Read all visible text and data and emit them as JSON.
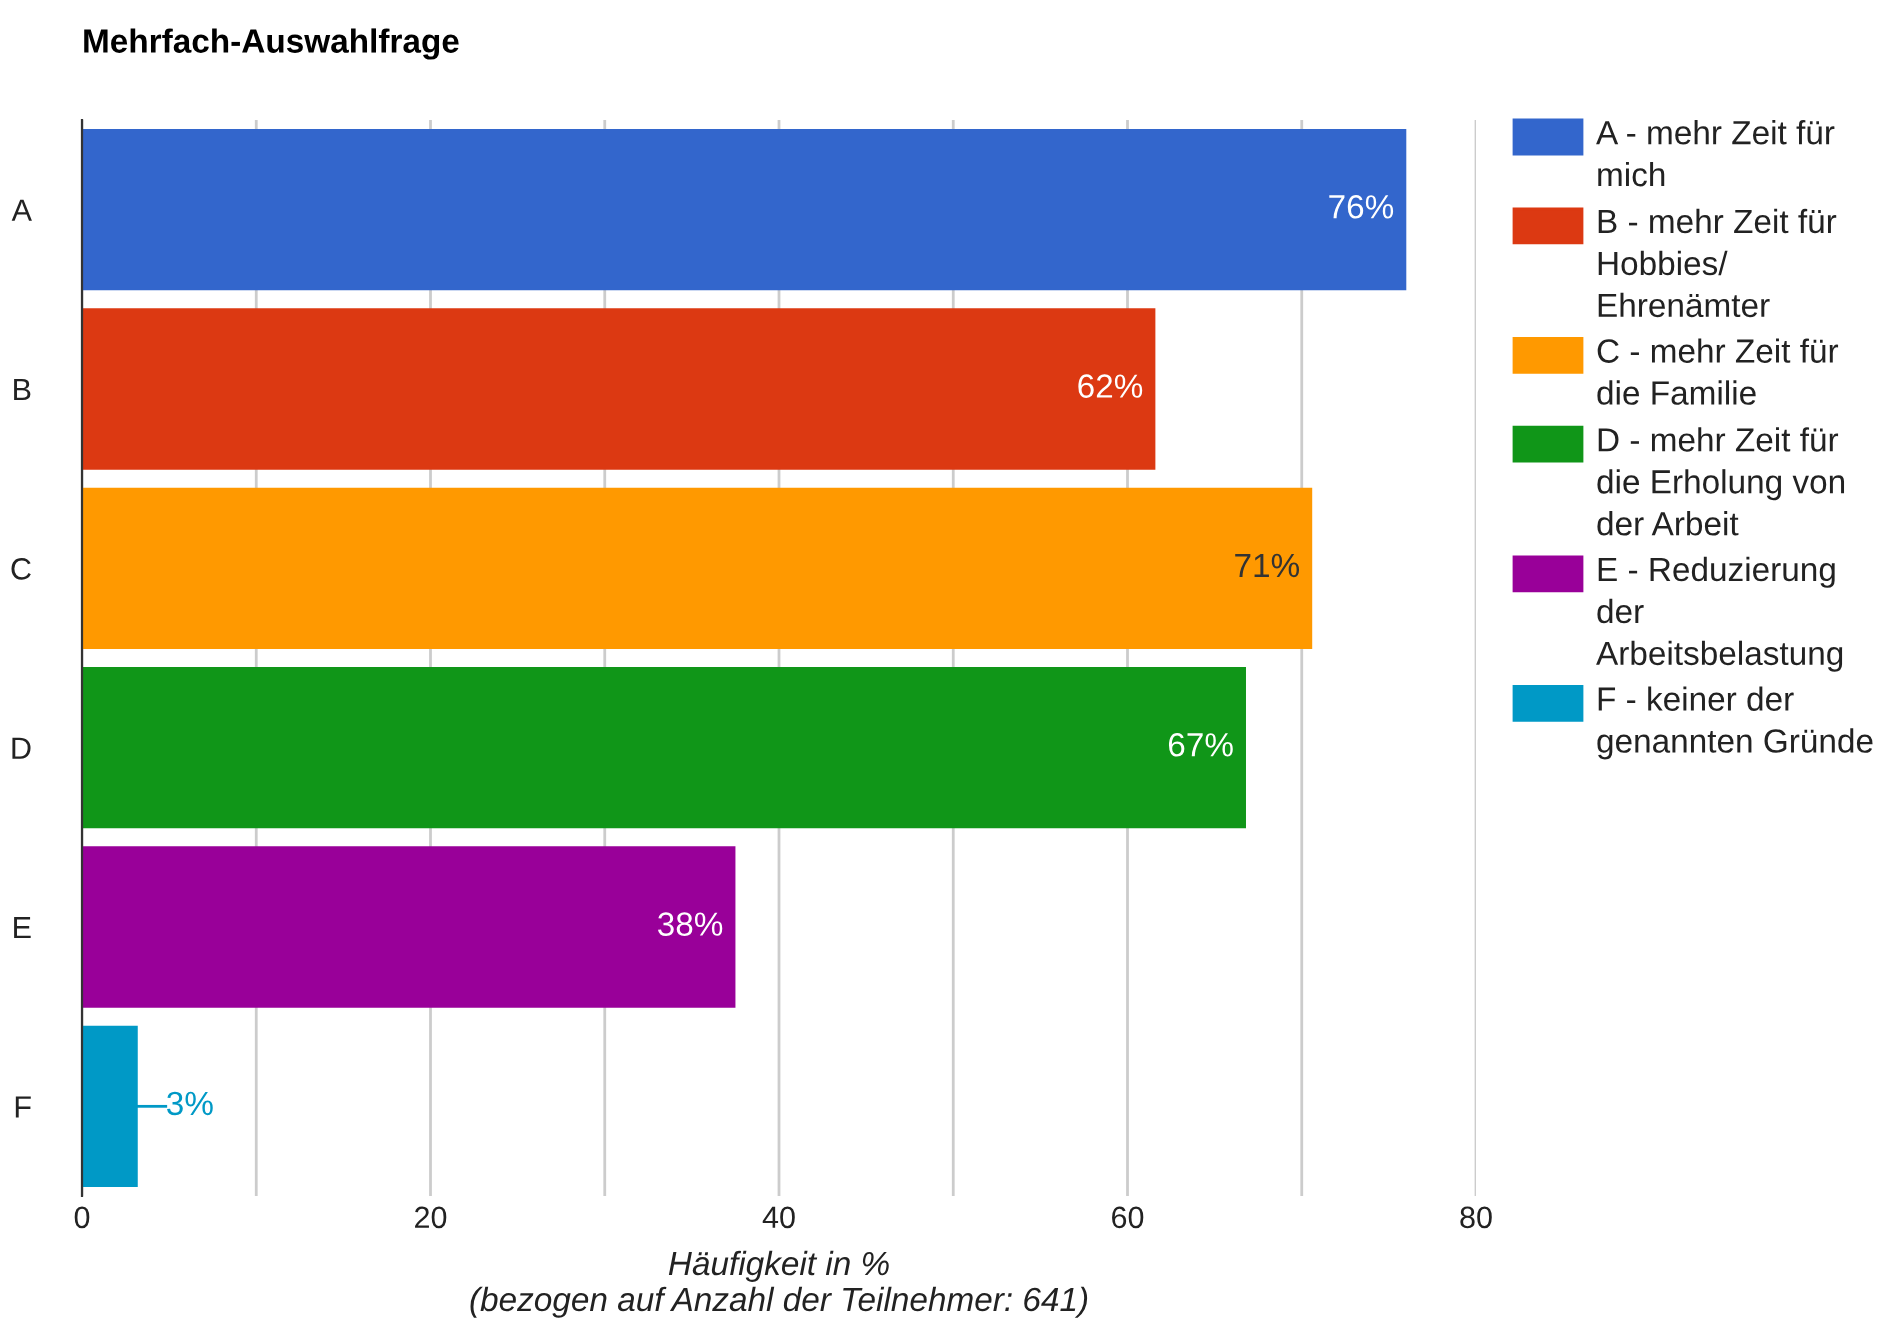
{
  "chart_data": {
    "type": "bar",
    "orientation": "horizontal",
    "stacked": true,
    "title": "Mehrfach-Auswahlfrage",
    "xlabel": "Häufigkeit in %\n(bezogen auf Anzahl der Teilnehmer: 641)",
    "categories": [
      "A",
      "B",
      "C",
      "D",
      "E",
      "F"
    ],
    "series": [
      {
        "name": "A - mehr Zeit für mich",
        "color": "#3366cc",
        "values": [
          76.0,
          null,
          null,
          null,
          null,
          null
        ],
        "value_labels": [
          "76%",
          null,
          null,
          null,
          null,
          null
        ]
      },
      {
        "name": "B - mehr Zeit für Hobbies/ Ehrenämter",
        "color": "#dc3912",
        "values": [
          null,
          61.6,
          null,
          null,
          null,
          null
        ],
        "value_labels": [
          null,
          "62%",
          null,
          null,
          null,
          null
        ]
      },
      {
        "name": "C - mehr Zeit für die Familie",
        "color": "#ff9900",
        "values": [
          null,
          null,
          70.6,
          null,
          null,
          null
        ],
        "value_labels": [
          null,
          null,
          "71%",
          null,
          null,
          null
        ]
      },
      {
        "name": "D - mehr Zeit für die Erholung von der Arbeit",
        "color": "#109618",
        "values": [
          null,
          null,
          null,
          66.8,
          null,
          null
        ],
        "value_labels": [
          null,
          null,
          null,
          "67%",
          null,
          null
        ]
      },
      {
        "name": "E - Reduzierung der Arbeitsbelastung",
        "color": "#990099",
        "values": [
          null,
          null,
          null,
          null,
          37.5,
          null
        ],
        "value_labels": [
          null,
          null,
          null,
          null,
          "38%",
          null
        ]
      },
      {
        "name": "F - keiner der genannten Gründe",
        "color": "#0099c6",
        "values": [
          null,
          null,
          null,
          null,
          null,
          3.2
        ],
        "value_labels": [
          null,
          null,
          null,
          null,
          null,
          "3%"
        ]
      }
    ],
    "xlim": [
      0,
      80
    ],
    "xticks": [
      0,
      {
        "value": 10,
        "label": null
      },
      20,
      {
        "value": 30,
        "label": null
      },
      40,
      {
        "value": 50,
        "label": null
      },
      60,
      {
        "value": 70,
        "label": null
      },
      80
    ],
    "grid": "x",
    "legend": "right"
  }
}
